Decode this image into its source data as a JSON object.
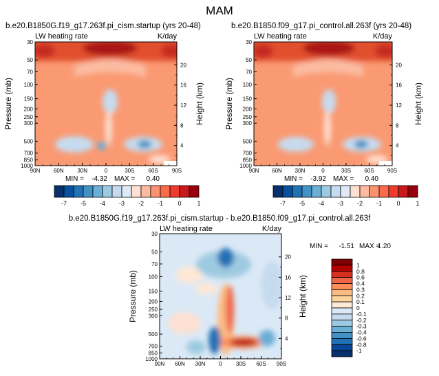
{
  "page_title": "MAM",
  "chart_data": [
    {
      "type": "heatmap",
      "title": "b.e20.B1850G.f19_g17.263f.pi_cism.startup (yrs 20-48)",
      "subtitle_left": "LW heating rate",
      "subtitle_right": "K/day",
      "xlabel": "",
      "ylabel": "Pressure (mb)",
      "right_axis_label": "Height (km)",
      "x_ticks": [
        "90N",
        "60N",
        "30N",
        "0",
        "30S",
        "60S",
        "90S"
      ],
      "y_ticks": [
        "30",
        "50",
        "70",
        "100",
        "150",
        "200",
        "250",
        "300",
        "500",
        "700",
        "850",
        "1000"
      ],
      "right_ticks": [
        "20",
        "16",
        "12",
        "8",
        "4"
      ],
      "xlim": [
        90,
        -90
      ],
      "ylim": [
        1000,
        30
      ],
      "min_label": "MIN =",
      "min_value": "-4.32",
      "max_label": "MAX =",
      "max_value": "0.40",
      "stats_text": "MIN = -4.32 MAX = 0.40"
    },
    {
      "type": "heatmap",
      "title": "b.e20.B1850.f09_g17.pi_control.all.263f (yrs 20-48)",
      "subtitle_left": "LW heating rate",
      "subtitle_right": "K/day",
      "xlabel": "",
      "ylabel": "Pressure (mb)",
      "right_axis_label": "Height (km)",
      "x_ticks": [
        "90N",
        "60N",
        "30N",
        "0",
        "30S",
        "60S",
        "90S"
      ],
      "y_ticks": [
        "30",
        "50",
        "70",
        "100",
        "150",
        "200",
        "250",
        "300",
        "500",
        "700",
        "850",
        "1000"
      ],
      "right_ticks": [
        "20",
        "16",
        "12",
        "8",
        "4"
      ],
      "xlim": [
        90,
        -90
      ],
      "ylim": [
        1000,
        30
      ],
      "min_label": "MIN =",
      "min_value": "-3.92",
      "max_label": "MAX =",
      "max_value": "0.40",
      "stats_text": "MIN = -3.92 MAX = 0.40"
    },
    {
      "type": "heatmap",
      "title": "b.e20.B1850G.f19_g17.263f.pi_cism.startup - b.e20.B1850.f09_g17.pi_control.all.263f",
      "subtitle_left": "LW heating rate",
      "subtitle_right": "K/day",
      "xlabel": "",
      "ylabel": "Pressure (mb)",
      "right_axis_label": "Height (km)",
      "x_ticks": [
        "90N",
        "60N",
        "30N",
        "0",
        "30S",
        "60S",
        "90S"
      ],
      "y_ticks": [
        "30",
        "50",
        "70",
        "100",
        "150",
        "200",
        "250",
        "300",
        "500",
        "700",
        "850",
        "1000"
      ],
      "right_ticks": [
        "20",
        "16",
        "12",
        "8",
        "4"
      ],
      "xlim": [
        90,
        -90
      ],
      "ylim": [
        1000,
        30
      ],
      "min_label": "MIN =",
      "min_value": "-1.51",
      "max_label": "MAX =",
      "max_value": "1.20",
      "stats_text": "MIN = -1.51 MAX = 1.20"
    }
  ],
  "colorbars": {
    "top": {
      "labels": [
        "-7",
        "-5",
        "-4",
        "-3",
        "-2",
        "-1",
        "0",
        "1"
      ],
      "colors": [
        "#08306b",
        "#08519c",
        "#2171b5",
        "#4292c6",
        "#6baed6",
        "#9ecae1",
        "#c6dbef",
        "#deebf7",
        "#fde0d2",
        "#fcbba1",
        "#fc9272",
        "#fb6a4a",
        "#ef3b2c",
        "#cb181d",
        "#99000d"
      ]
    },
    "diff": {
      "labels": [
        "1",
        "0.8",
        "0.6",
        "0.4",
        "0.3",
        "0.2",
        "0.1",
        "0",
        "-0.1",
        "-0.2",
        "-0.3",
        "-0.4",
        "-0.6",
        "-0.8",
        "-1"
      ],
      "colors": [
        "#7f0000",
        "#b30000",
        "#d7301f",
        "#ef6548",
        "#fc8d59",
        "#fdbb84",
        "#fdd49e",
        "#fee8d6",
        "#dbe9f6",
        "#c6dbef",
        "#9ecae1",
        "#6baed6",
        "#4292c6",
        "#2171b5",
        "#084594",
        "#08306b"
      ]
    }
  }
}
